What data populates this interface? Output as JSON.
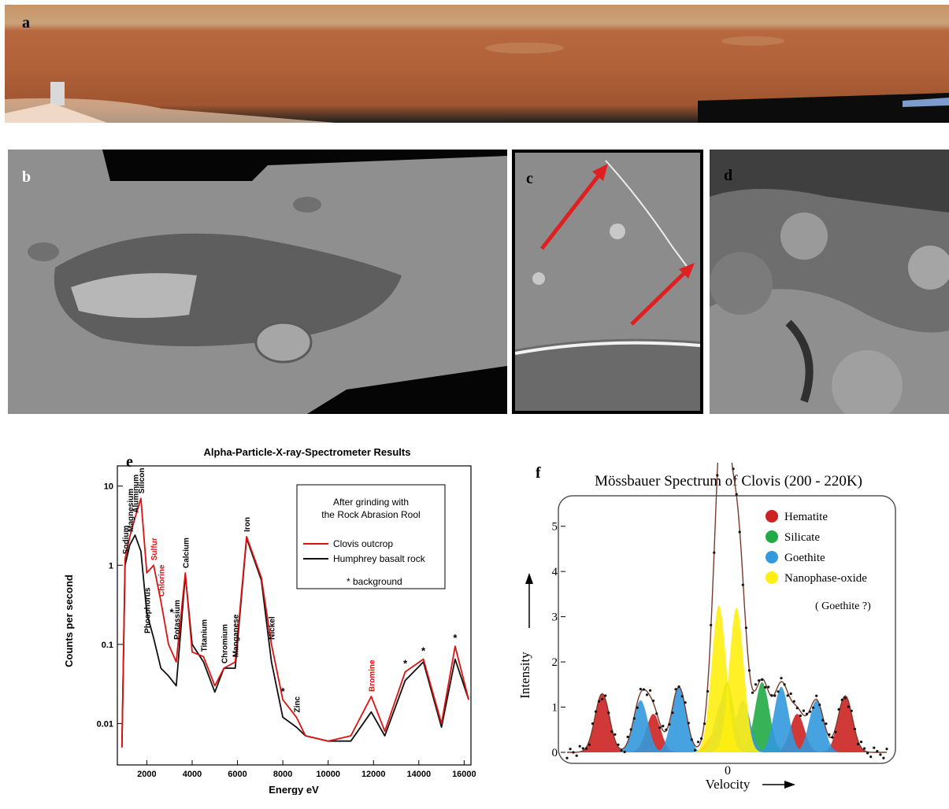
{
  "panels": {
    "a": {
      "label": "a"
    },
    "b": {
      "label": "b"
    },
    "c": {
      "label": "c"
    },
    "d": {
      "label": "d"
    },
    "e": {
      "label": "e"
    },
    "f": {
      "label": "f"
    }
  },
  "apxs": {
    "title": "Alpha-Particle-X-ray-Spectrometer Results",
    "xlabel": "Energy eV",
    "ylabel": "Counts per second",
    "legend_heading_1": "After grinding with",
    "legend_heading_2": "the Rock Abrasion Rool",
    "legend_note": "* background",
    "xticks": [
      "2000",
      "4000",
      "6000",
      "8000",
      "10000",
      "12000",
      "14000",
      "16000"
    ],
    "yticks": [
      "10",
      "1",
      "0.1",
      "0.01"
    ]
  },
  "mossbauer": {
    "title": "Mössbauer Spectrum of Clovis (200 - 220K)",
    "xlabel": "Velocity",
    "ylabel": "Intensity",
    "x_zero": "0",
    "yticks": [
      "0",
      "1",
      "2",
      "3",
      "4",
      "5"
    ],
    "legend_note": "( Goethite ?)"
  },
  "chart_data": [
    {
      "type": "line",
      "title": "Alpha-Particle-X-ray-Spectrometer Results",
      "xlabel": "Energy eV",
      "ylabel": "Counts per second",
      "xlim": [
        700,
        16300
      ],
      "ylim": [
        0.003,
        18
      ],
      "yscale": "log",
      "legend_position": "top-right",
      "series": [
        {
          "name": "Clovis outcrop",
          "color": "#dd1111",
          "x": [
            900,
            1040,
            1250,
            1480,
            1740,
            2000,
            2300,
            2620,
            2960,
            3300,
            3700,
            4000,
            4500,
            5000,
            5400,
            5900,
            6400,
            7050,
            7500,
            8000,
            8600,
            9000,
            10000,
            11000,
            11900,
            12500,
            13400,
            14200,
            15000,
            15600,
            16200
          ],
          "y": [
            0.005,
            1.2,
            2.3,
            4.0,
            7.0,
            0.8,
            1.0,
            0.35,
            0.1,
            0.06,
            0.8,
            0.08,
            0.07,
            0.03,
            0.05,
            0.06,
            2.3,
            0.7,
            0.1,
            0.02,
            0.012,
            0.007,
            0.006,
            0.007,
            0.022,
            0.008,
            0.045,
            0.065,
            0.01,
            0.095,
            0.02
          ]
        },
        {
          "name": "Humphrey basalt rock",
          "color": "#111111",
          "x": [
            900,
            1040,
            1250,
            1480,
            1740,
            2000,
            2300,
            2620,
            2960,
            3300,
            3700,
            4000,
            4500,
            5000,
            5400,
            5900,
            6400,
            7050,
            7500,
            8000,
            8600,
            9000,
            10000,
            11000,
            11900,
            12500,
            13400,
            14200,
            15000,
            15600,
            16200
          ],
          "y": [
            0.005,
            1.0,
            1.8,
            2.4,
            1.5,
            0.25,
            0.12,
            0.05,
            0.04,
            0.03,
            0.75,
            0.1,
            0.06,
            0.025,
            0.05,
            0.05,
            2.2,
            0.65,
            0.06,
            0.012,
            0.009,
            0.007,
            0.006,
            0.006,
            0.014,
            0.007,
            0.035,
            0.06,
            0.009,
            0.065,
            0.02
          ]
        }
      ],
      "peak_labels": [
        {
          "text": "Sodium",
          "x": 1040,
          "y": 1.2,
          "color": "#000000"
        },
        {
          "text": "Magnesium",
          "x": 1250,
          "y": 2.3,
          "color": "#000000"
        },
        {
          "text": "Aluminum",
          "x": 1480,
          "y": 4.0,
          "color": "#000000"
        },
        {
          "text": "Silicon",
          "x": 1740,
          "y": 7.0,
          "color": "#000000"
        },
        {
          "text": "Sulfur",
          "x": 2300,
          "y": 1.0,
          "color": "#dd1111"
        },
        {
          "text": "Chlorine",
          "x": 2620,
          "y": 0.35,
          "color": "#dd1111"
        },
        {
          "text": "Phosphorus",
          "x": 2000,
          "y": 0.12,
          "color": "#000000"
        },
        {
          "text": "Potassium",
          "x": 3300,
          "y": 0.1,
          "color": "#000000"
        },
        {
          "text": "Calcium",
          "x": 3700,
          "y": 0.8,
          "color": "#000000"
        },
        {
          "text": "Titanium",
          "x": 4500,
          "y": 0.07,
          "color": "#000000"
        },
        {
          "text": "Chromium",
          "x": 5400,
          "y": 0.05,
          "color": "#000000"
        },
        {
          "text": "Manganese",
          "x": 5900,
          "y": 0.06,
          "color": "#000000"
        },
        {
          "text": "Iron",
          "x": 6400,
          "y": 2.3,
          "color": "#000000"
        },
        {
          "text": "Nickel",
          "x": 7500,
          "y": 0.1,
          "color": "#000000"
        },
        {
          "text": "Zinc",
          "x": 8600,
          "y": 0.012,
          "color": "#000000"
        },
        {
          "text": "Bromine",
          "x": 11900,
          "y": 0.022,
          "color": "#dd1111"
        }
      ],
      "background_markers": [
        {
          "text": "*",
          "x": 3100,
          "y": 0.2
        },
        {
          "text": "*",
          "x": 8000,
          "y": 0.02
        },
        {
          "text": "*",
          "x": 13400,
          "y": 0.045
        },
        {
          "text": "*",
          "x": 14200,
          "y": 0.065
        },
        {
          "text": "*",
          "x": 15600,
          "y": 0.095
        }
      ]
    },
    {
      "type": "area",
      "title": "Mössbauer Spectrum of Clovis (200 - 220K)",
      "xlabel": "Velocity",
      "ylabel": "Intensity",
      "xlim": [
        -10,
        10
      ],
      "ylim": [
        0,
        5.5
      ],
      "legend_position": "top-right",
      "series": [
        {
          "name": "Hematite",
          "color": "#cc2222",
          "peaks": [
            {
              "x": -7.8,
              "h": 1.3
            },
            {
              "x": -4.6,
              "h": 0.85
            },
            {
              "x": -0.8,
              "h": 0.4
            },
            {
              "x": 4.4,
              "h": 0.85
            },
            {
              "x": 7.4,
              "h": 1.25
            }
          ]
        },
        {
          "name": "Silicate",
          "color": "#22aa44",
          "peaks": [
            {
              "x": 0.0,
              "h": 1.55
            },
            {
              "x": 2.2,
              "h": 1.55
            }
          ]
        },
        {
          "name": "Goethite",
          "color": "#3399dd",
          "peaks": [
            {
              "x": -5.4,
              "h": 1.15
            },
            {
              "x": -3.0,
              "h": 1.45
            },
            {
              "x": -0.3,
              "h": 1.15
            },
            {
              "x": 1.0,
              "h": 1.15
            },
            {
              "x": 3.4,
              "h": 1.45
            },
            {
              "x": 5.6,
              "h": 1.15
            }
          ]
        },
        {
          "name": "Nanophase-oxide",
          "color": "#ffee11",
          "peaks": [
            {
              "x": -0.5,
              "h": 3.25
            },
            {
              "x": 0.6,
              "h": 3.2
            }
          ]
        }
      ],
      "measured_peaks": [
        {
          "x": -0.2,
          "y": 5.35
        },
        {
          "x": 0.6,
          "y": 4.0
        }
      ]
    }
  ]
}
